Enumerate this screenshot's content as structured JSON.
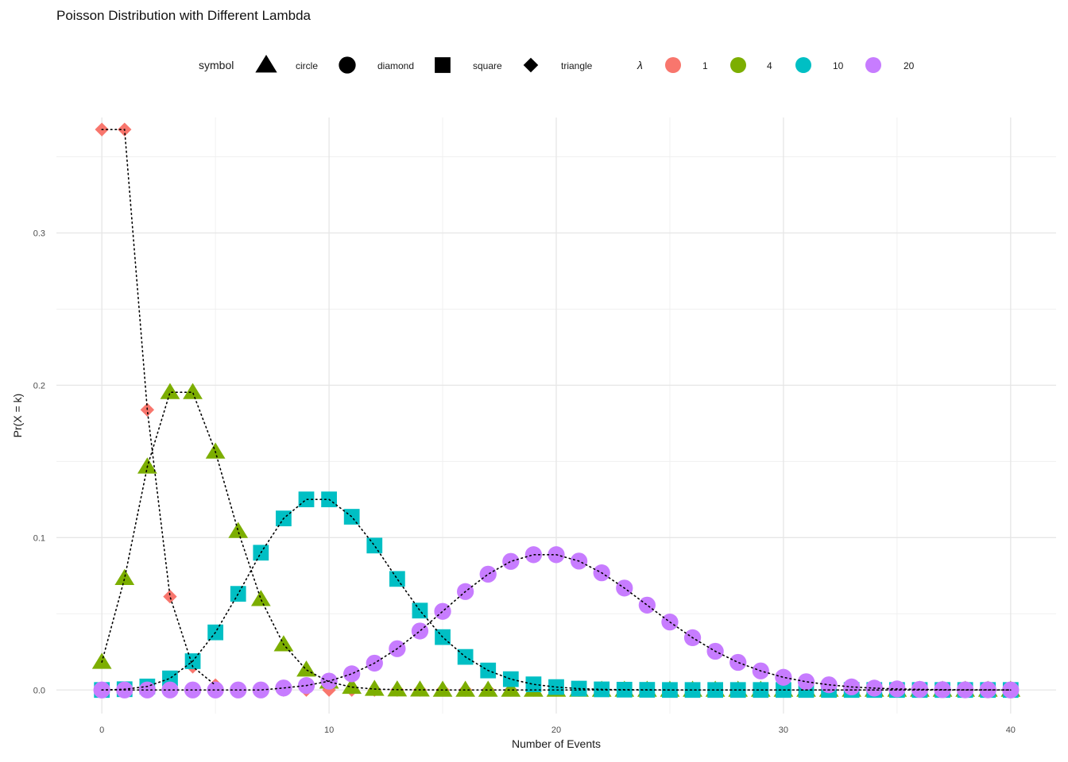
{
  "chart_data": {
    "type": "scatter",
    "title": "Poisson Distribution with Different Lambda",
    "xlabel": "Number of Events",
    "ylabel": "Pr(X = k)",
    "xlim": [
      -2,
      42
    ],
    "ylim": [
      -0.0155,
      0.3758
    ],
    "x_ticks": [
      0,
      10,
      20,
      30,
      40
    ],
    "y_ticks": [
      0.0,
      0.1,
      0.2,
      0.3
    ],
    "y_tick_labels": [
      "0.0",
      "0.1",
      "0.2",
      "0.3"
    ],
    "grid": true,
    "legend_position": "top",
    "legend_symbol_title": "symbol",
    "legend_symbol_items": [
      {
        "label": "circle",
        "shape": "triangle"
      },
      {
        "label": "diamond",
        "shape": "circle"
      },
      {
        "label": "square",
        "shape": "square"
      },
      {
        "label": "triangle",
        "shape": "diamond"
      }
    ],
    "legend_lambda_title": "λ",
    "x": [
      0,
      1,
      2,
      3,
      4,
      5,
      6,
      7,
      8,
      9,
      10,
      11,
      12,
      13,
      14,
      15,
      16,
      17,
      18,
      19,
      20,
      21,
      22,
      23,
      24,
      25,
      26,
      27,
      28,
      29,
      30,
      31,
      32,
      33,
      34,
      35,
      36,
      37,
      38,
      39,
      40
    ],
    "series": [
      {
        "name": "1",
        "color": "#F8766D",
        "shape": "diamond",
        "line_until": 5,
        "values": [
          0.3679,
          0.3679,
          0.1839,
          0.0613,
          0.0153,
          0.0031,
          0.0005,
          0.0001,
          0.0,
          0.0,
          0.0,
          0.0,
          0.0,
          0.0,
          0.0,
          0.0,
          0.0,
          0.0,
          0.0,
          0.0,
          0.0,
          0.0,
          0.0,
          0.0,
          0.0,
          0.0,
          0.0,
          0.0,
          0.0,
          0.0,
          0.0,
          0.0,
          0.0,
          0.0,
          0.0,
          0.0,
          0.0,
          0.0,
          0.0,
          0.0,
          0.0
        ]
      },
      {
        "name": "4",
        "color": "#7CAE00",
        "shape": "triangle",
        "line_until": 40,
        "values": [
          0.0183,
          0.0733,
          0.1465,
          0.1954,
          0.1954,
          0.1563,
          0.1042,
          0.0595,
          0.0298,
          0.0132,
          0.0053,
          0.0019,
          0.0006,
          0.0002,
          0.0001,
          0.0,
          0.0,
          0.0,
          0.0,
          0.0,
          0.0,
          0.0,
          0.0,
          0.0,
          0.0,
          0.0,
          0.0,
          0.0,
          0.0,
          0.0,
          0.0,
          0.0,
          0.0,
          0.0,
          0.0,
          0.0,
          0.0,
          0.0,
          0.0,
          0.0,
          0.0
        ]
      },
      {
        "name": "10",
        "color": "#00BFC4",
        "shape": "square",
        "line_until": 40,
        "values": [
          0.0,
          0.0005,
          0.0023,
          0.0076,
          0.0189,
          0.0378,
          0.0631,
          0.0901,
          0.1126,
          0.1251,
          0.1251,
          0.1137,
          0.0948,
          0.0729,
          0.0521,
          0.0347,
          0.0217,
          0.0128,
          0.0071,
          0.0037,
          0.0019,
          0.0009,
          0.0004,
          0.0002,
          0.0001,
          0.0,
          0.0,
          0.0,
          0.0,
          0.0,
          0.0,
          0.0,
          0.0,
          0.0,
          0.0,
          0.0,
          0.0,
          0.0,
          0.0,
          0.0,
          0.0
        ]
      },
      {
        "name": "20",
        "color": "#C77CFF",
        "shape": "circle",
        "line_until": 40,
        "values": [
          0.0,
          0.0,
          0.0,
          0.0,
          0.0,
          0.0,
          0.0,
          0.0,
          0.0013,
          0.0029,
          0.0058,
          0.0106,
          0.0176,
          0.0271,
          0.0387,
          0.0516,
          0.0646,
          0.076,
          0.0844,
          0.0888,
          0.0888,
          0.0846,
          0.0769,
          0.0669,
          0.0557,
          0.0446,
          0.0343,
          0.0254,
          0.0181,
          0.0125,
          0.0083,
          0.0054,
          0.0034,
          0.002,
          0.0012,
          0.0007,
          0.0004,
          0.0002,
          0.0001,
          0.0001,
          0.0
        ]
      }
    ]
  }
}
